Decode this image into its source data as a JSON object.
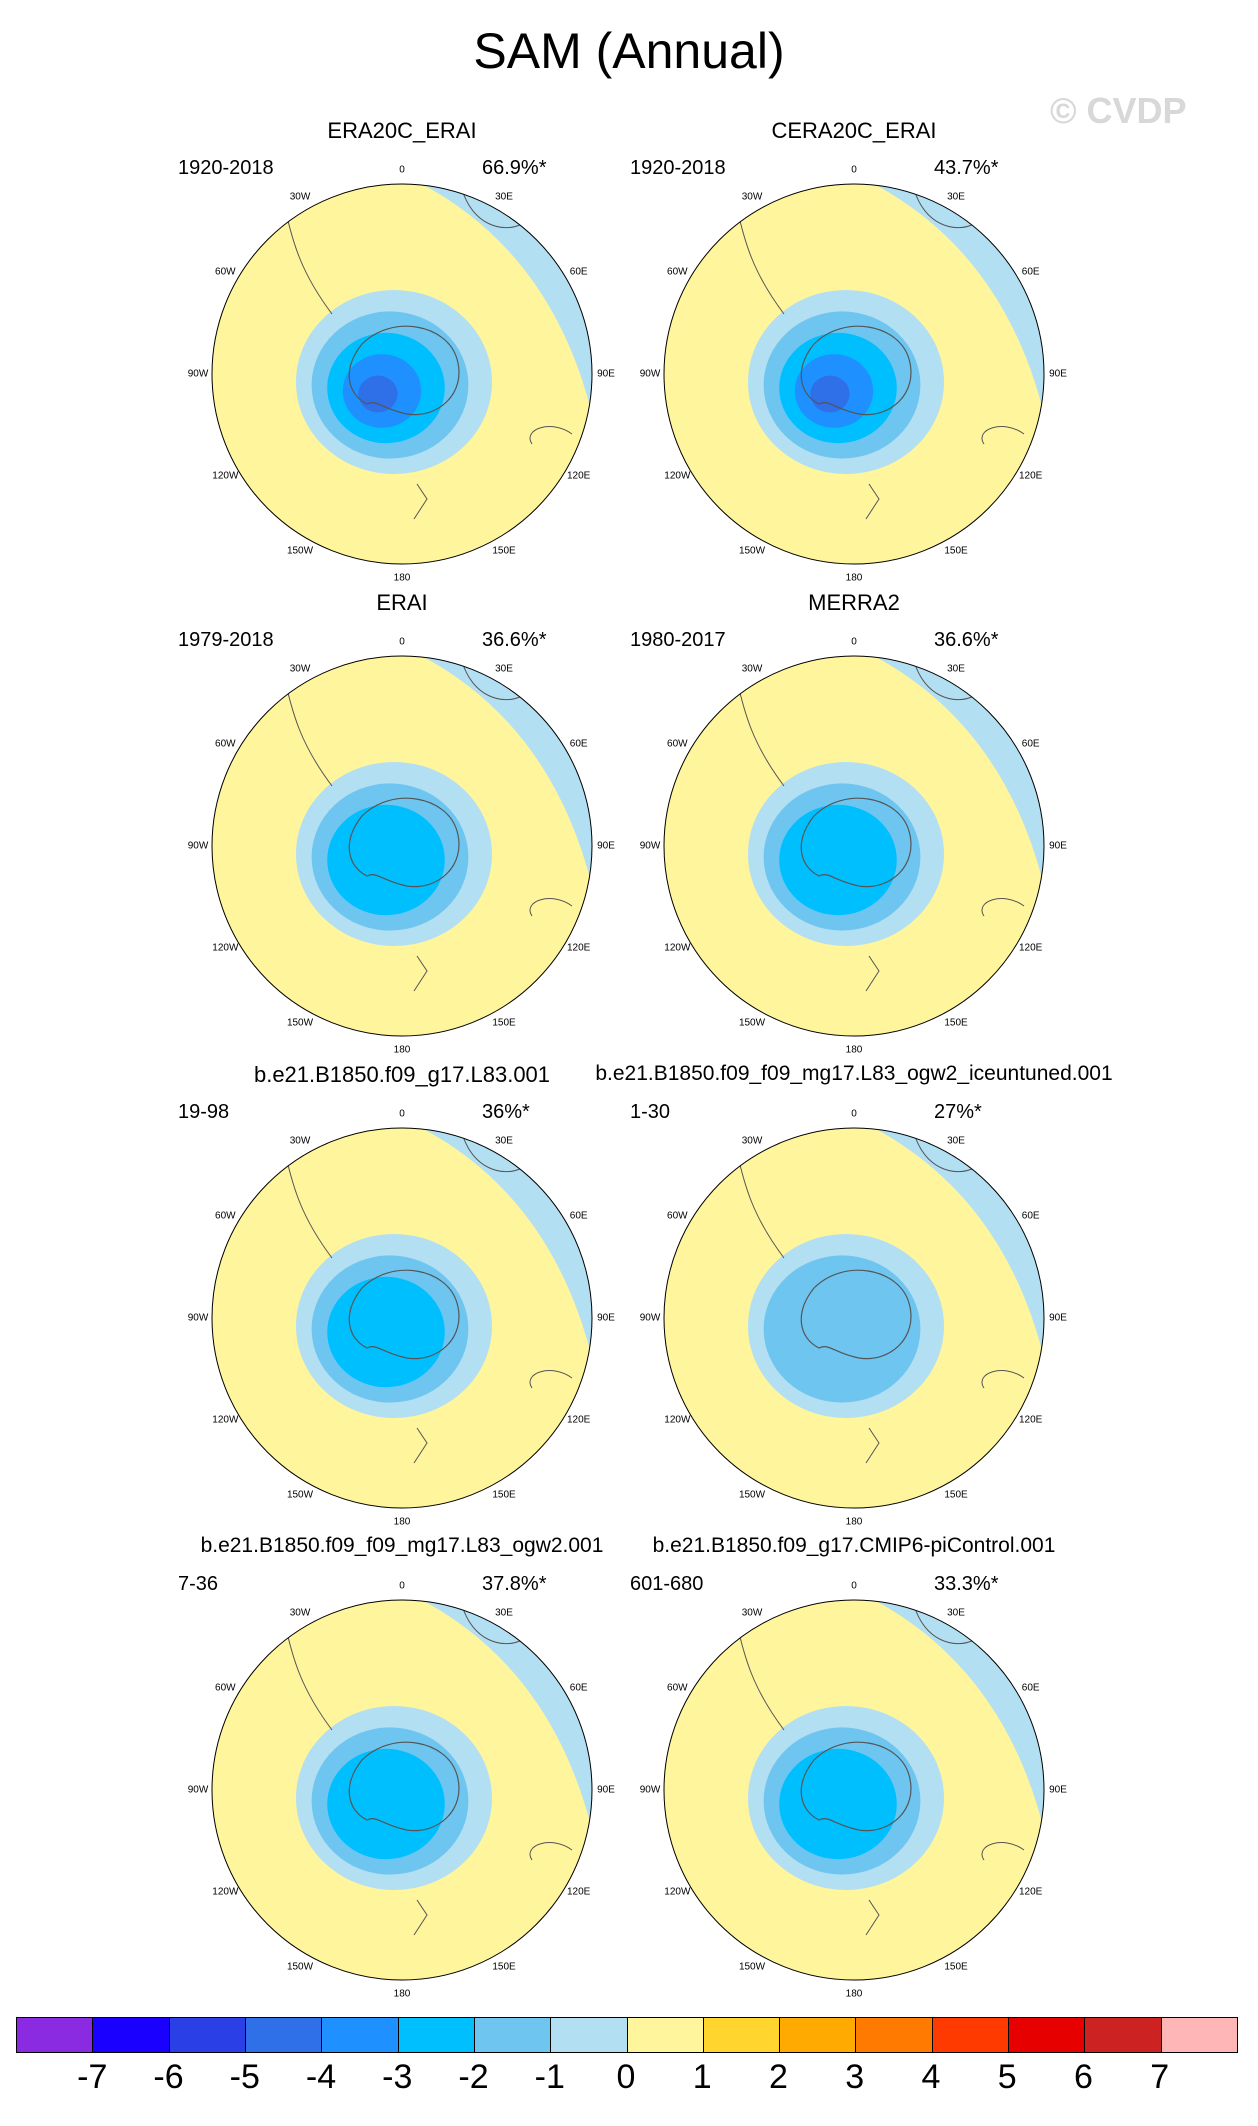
{
  "title": "SAM (Annual)",
  "watermark": "© CVDP",
  "chart_data": {
    "type": "polar-contour-map",
    "projection": "south polar stereographic",
    "variable": "SAM regression pattern",
    "longitude_labels": [
      "0",
      "30E",
      "60E",
      "90E",
      "120E",
      "150E",
      "180",
      "150W",
      "120W",
      "90W",
      "60W",
      "30W"
    ],
    "panels": [
      {
        "title": "ERA20C_ERAI",
        "period": "1920-2018",
        "pct_variance": "66.9%*",
        "min_level": -5
      },
      {
        "title": "CERA20C_ERAI",
        "period": "1920-2018",
        "pct_variance": "43.7%*",
        "min_level": -5
      },
      {
        "title": "ERAI",
        "period": "1979-2018",
        "pct_variance": "36.6%*",
        "min_level": -3
      },
      {
        "title": "MERRA2",
        "period": "1980-2017",
        "pct_variance": "36.6%*",
        "min_level": -3
      },
      {
        "title": "b.e21.B1850.f09_g17.L83.001",
        "period": "19-98",
        "pct_variance": "36%*",
        "min_level": -3
      },
      {
        "title": "b.e21.B1850.f09_f09_mg17.L83_ogw2_iceuntuned.001",
        "period": "1-30",
        "pct_variance": "27%*",
        "min_level": -2
      },
      {
        "title": "b.e21.B1850.f09_f09_mg17.L83_ogw2.001",
        "period": "7-36",
        "pct_variance": "37.8%*",
        "min_level": -3
      },
      {
        "title": "b.e21.B1850.f09_g17.CMIP6-piControl.001",
        "period": "601-680",
        "pct_variance": "33.3%*",
        "min_level": -3
      }
    ],
    "colorbar": {
      "labels": [
        "-7",
        "-6",
        "-5",
        "-4",
        "-3",
        "-2",
        "-1",
        "0",
        "1",
        "2",
        "3",
        "4",
        "5",
        "6",
        "7"
      ],
      "colors": [
        "#8a2be2",
        "#1a00ff",
        "#2a3fe6",
        "#2f6fe8",
        "#1e90ff",
        "#00bfff",
        "#6ec6f0",
        "#b3dff2",
        "#fff59d",
        "#ffd52e",
        "#ffaa00",
        "#ff7a00",
        "#ff3a00",
        "#e60000",
        "#cc2222",
        "#ffb6b6"
      ]
    }
  }
}
